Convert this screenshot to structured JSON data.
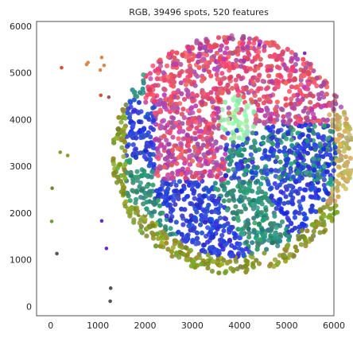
{
  "chart_data": {
    "type": "scatter",
    "title": "RGB, 39496 spots, 520 features",
    "xlabel": "",
    "ylabel": "",
    "xlim": [
      -300,
      6000
    ],
    "ylim": [
      -200,
      6100
    ],
    "xticks": [
      0,
      1000,
      2000,
      3000,
      4000,
      5000,
      6000
    ],
    "yticks": [
      0,
      1000,
      2000,
      3000,
      4000,
      5000,
      6000
    ],
    "grid": false,
    "legend": "none",
    "tissue_region": {
      "description": "dense circular cloud of colored spots",
      "center": [
        3850,
        3250
      ],
      "radius": 2550,
      "regions": [
        {
          "name": "outer-rim-olive",
          "color": "#8a9a2a"
        },
        {
          "name": "left-band-teal",
          "color": "#2f8f7a"
        },
        {
          "name": "blue-folds",
          "color": "#2a3fd6"
        },
        {
          "name": "center-magenta",
          "color": "#b04aa8"
        },
        {
          "name": "upper-red-pink",
          "color": "#e8506a"
        },
        {
          "name": "light-green-patch",
          "color": "#9ff0a8"
        },
        {
          "name": "right-rim-tan",
          "color": "#c8b060"
        }
      ]
    },
    "outlier_points": [
      {
        "x": 230,
        "y": 5110,
        "color": "#d1543c"
      },
      {
        "x": 760,
        "y": 5180,
        "color": "#d68a4c"
      },
      {
        "x": 790,
        "y": 5220,
        "color": "#d68a4c"
      },
      {
        "x": 1080,
        "y": 5330,
        "color": "#d68a4c"
      },
      {
        "x": 1050,
        "y": 5060,
        "color": "#d68a4c"
      },
      {
        "x": 1130,
        "y": 5160,
        "color": "#d68a4c"
      },
      {
        "x": 1060,
        "y": 4520,
        "color": "#d1543c"
      },
      {
        "x": 1230,
        "y": 4480,
        "color": "#a05a5a"
      },
      {
        "x": 200,
        "y": 3300,
        "color": "#8a9a2a"
      },
      {
        "x": 360,
        "y": 3230,
        "color": "#8a9a2a"
      },
      {
        "x": 30,
        "y": 2530,
        "color": "#6f8a2a"
      },
      {
        "x": 20,
        "y": 1820,
        "color": "#6f9a3a"
      },
      {
        "x": 130,
        "y": 1130,
        "color": "#555555"
      },
      {
        "x": 1080,
        "y": 1830,
        "color": "#6a2ac8"
      },
      {
        "x": 1180,
        "y": 1240,
        "color": "#6a2ac8"
      },
      {
        "x": 1270,
        "y": 390,
        "color": "#555555"
      },
      {
        "x": 1260,
        "y": 110,
        "color": "#555555"
      },
      {
        "x": 5380,
        "y": 5420,
        "color": "#7a2ac8"
      },
      {
        "x": 4420,
        "y": 5600,
        "color": "#7a2ac8"
      }
    ]
  }
}
